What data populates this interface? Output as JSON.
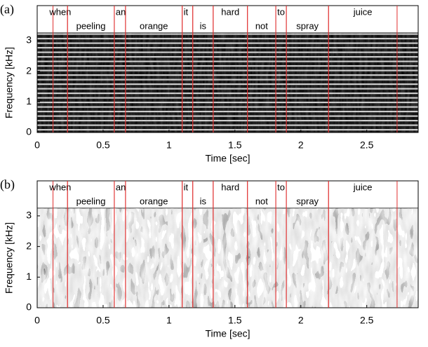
{
  "chart_data": [
    {
      "type": "spectrogram",
      "panel_label": "(a)",
      "xlabel": "Time [sec]",
      "ylabel": "Frequency [kHz]",
      "xlim": [
        0,
        2.89
      ],
      "ylim": [
        0,
        3.25
      ],
      "xticks": [
        0,
        0.5,
        1,
        1.5,
        2,
        2.5
      ],
      "yticks": [
        0,
        1,
        2,
        3
      ],
      "boundary_color": "#e03030",
      "words": [
        {
          "label": "when",
          "start": 0.12,
          "end": 0.23
        },
        {
          "label": "peeling",
          "start": 0.23,
          "end": 0.585
        },
        {
          "label": "an",
          "start": 0.585,
          "end": 0.67
        },
        {
          "label": "orange",
          "start": 0.67,
          "end": 1.1
        },
        {
          "label": "it",
          "start": 1.1,
          "end": 1.18
        },
        {
          "label": "is",
          "start": 1.18,
          "end": 1.335
        },
        {
          "label": "hard",
          "start": 1.335,
          "end": 1.595
        },
        {
          "label": "not",
          "start": 1.595,
          "end": 1.81
        },
        {
          "label": "to",
          "start": 1.81,
          "end": 1.89
        },
        {
          "label": "spray",
          "start": 1.89,
          "end": 2.21
        },
        {
          "label": "juice",
          "start": 2.21,
          "end": 2.73
        }
      ]
    },
    {
      "type": "spectrogram",
      "panel_label": "(b)",
      "xlabel": "Time [sec]",
      "ylabel": "Frequency [kHz]",
      "xlim": [
        0,
        2.89
      ],
      "ylim": [
        0,
        3.25
      ],
      "xticks": [
        0,
        0.5,
        1,
        1.5,
        2,
        2.5
      ],
      "yticks": [
        0,
        1,
        2,
        3
      ],
      "boundary_color": "#e03030",
      "words": [
        {
          "label": "when",
          "start": 0.12,
          "end": 0.23
        },
        {
          "label": "peeling",
          "start": 0.23,
          "end": 0.585
        },
        {
          "label": "an",
          "start": 0.585,
          "end": 0.67
        },
        {
          "label": "orange",
          "start": 0.67,
          "end": 1.1
        },
        {
          "label": "it",
          "start": 1.1,
          "end": 1.18
        },
        {
          "label": "is",
          "start": 1.18,
          "end": 1.335
        },
        {
          "label": "hard",
          "start": 1.335,
          "end": 1.595
        },
        {
          "label": "not",
          "start": 1.595,
          "end": 1.81
        },
        {
          "label": "to",
          "start": 1.81,
          "end": 1.89
        },
        {
          "label": "spray",
          "start": 1.89,
          "end": 2.21
        },
        {
          "label": "juice",
          "start": 2.21,
          "end": 2.73
        }
      ]
    }
  ]
}
